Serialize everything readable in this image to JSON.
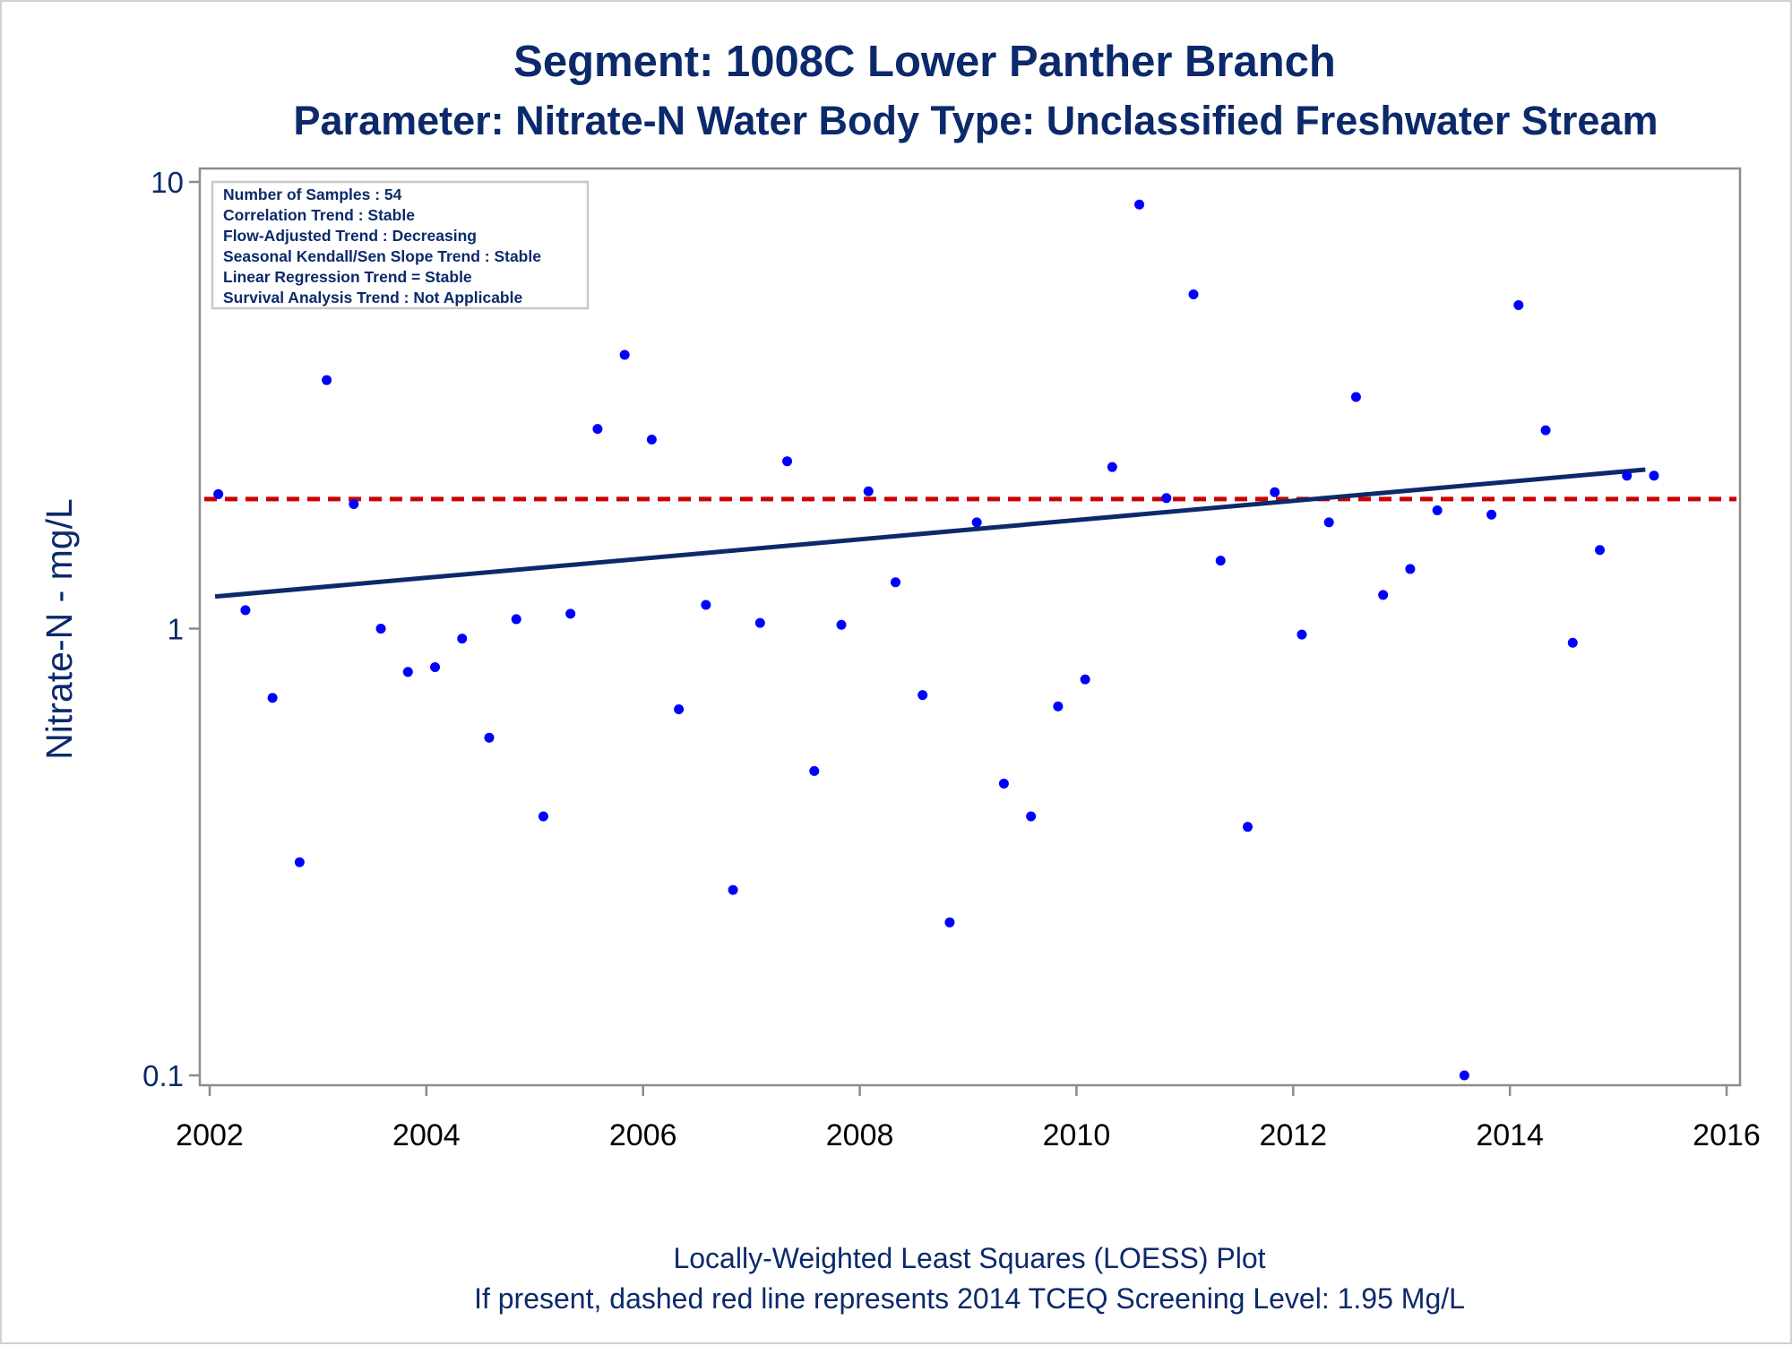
{
  "chart_data": {
    "type": "scatter",
    "title": "Segment: 1008C  Lower Panther Branch",
    "subtitle": "Parameter: Nitrate-N   Water Body Type: Unclassified Freshwater Stream",
    "ylabel": "Nitrate-N - mg/L",
    "xlabel": "",
    "y_scale": "log",
    "ylim": [
      0.1,
      10
    ],
    "xlim": [
      2002,
      2016
    ],
    "x_ticks": [
      "2002",
      "2004",
      "2006",
      "2008",
      "2010",
      "2012",
      "2014",
      "2016"
    ],
    "y_ticks": [
      "0.1",
      "1",
      "10"
    ],
    "grid": false,
    "legend_inset": [
      "Number of Samples : 54",
      "Correlation Trend : Stable",
      "Flow-Adjusted Trend : Decreasing",
      "Seasonal Kendall/Sen Slope Trend : Stable",
      "Linear Regression Trend = Stable",
      "Survival Analysis Trend : Not Applicable"
    ],
    "footnotes": [
      "Locally-Weighted Least Squares (LOESS) Plot",
      "If present, dashed red line represents 2014 TCEQ Screening Level: 1.95 Mg/L"
    ],
    "screening_level": 1.95,
    "colors": {
      "points": "#0000ff",
      "trend_line": "#0c2a6b",
      "screening_line": "#cc0000",
      "text": "#0c2a6b"
    },
    "trend_line": {
      "x": [
        2002.05,
        2015.25
      ],
      "y": [
        1.18,
        2.27
      ]
    },
    "series": [
      {
        "x": [
          2002.08,
          2002.33,
          2002.58,
          2002.83,
          2003.08,
          2003.33,
          2003.58,
          2003.83,
          2004.08,
          2004.33,
          2004.58,
          2004.83,
          2005.08,
          2005.33,
          2005.58,
          2005.83,
          2006.08,
          2006.33,
          2006.58,
          2006.83,
          2007.08,
          2007.33,
          2007.58,
          2007.83,
          2008.08,
          2008.33,
          2008.58,
          2008.83,
          2009.08,
          2009.33,
          2009.58,
          2009.83,
          2010.08,
          2010.33,
          2010.58,
          2010.83,
          2011.08,
          2011.33,
          2011.58,
          2011.83,
          2012.08,
          2012.33,
          2012.58,
          2012.83,
          2013.08,
          2013.33,
          2013.58,
          2013.83,
          2014.08,
          2014.33,
          2014.58,
          2014.83,
          2015.08,
          2015.33
        ],
        "y": [
          2.0,
          1.1,
          0.7,
          0.3,
          3.6,
          1.9,
          1.0,
          0.8,
          0.82,
          0.95,
          0.57,
          1.05,
          0.38,
          1.08,
          2.8,
          4.1,
          2.65,
          0.66,
          1.13,
          0.26,
          1.03,
          2.37,
          0.48,
          1.02,
          2.03,
          1.27,
          0.71,
          0.22,
          1.73,
          0.45,
          0.38,
          0.67,
          0.77,
          2.3,
          8.9,
          1.96,
          5.6,
          1.42,
          0.36,
          2.02,
          0.97,
          1.73,
          3.3,
          1.19,
          1.36,
          1.84,
          0.1,
          1.8,
          5.3,
          2.78,
          0.93,
          1.5,
          2.2,
          2.2
        ]
      }
    ]
  }
}
